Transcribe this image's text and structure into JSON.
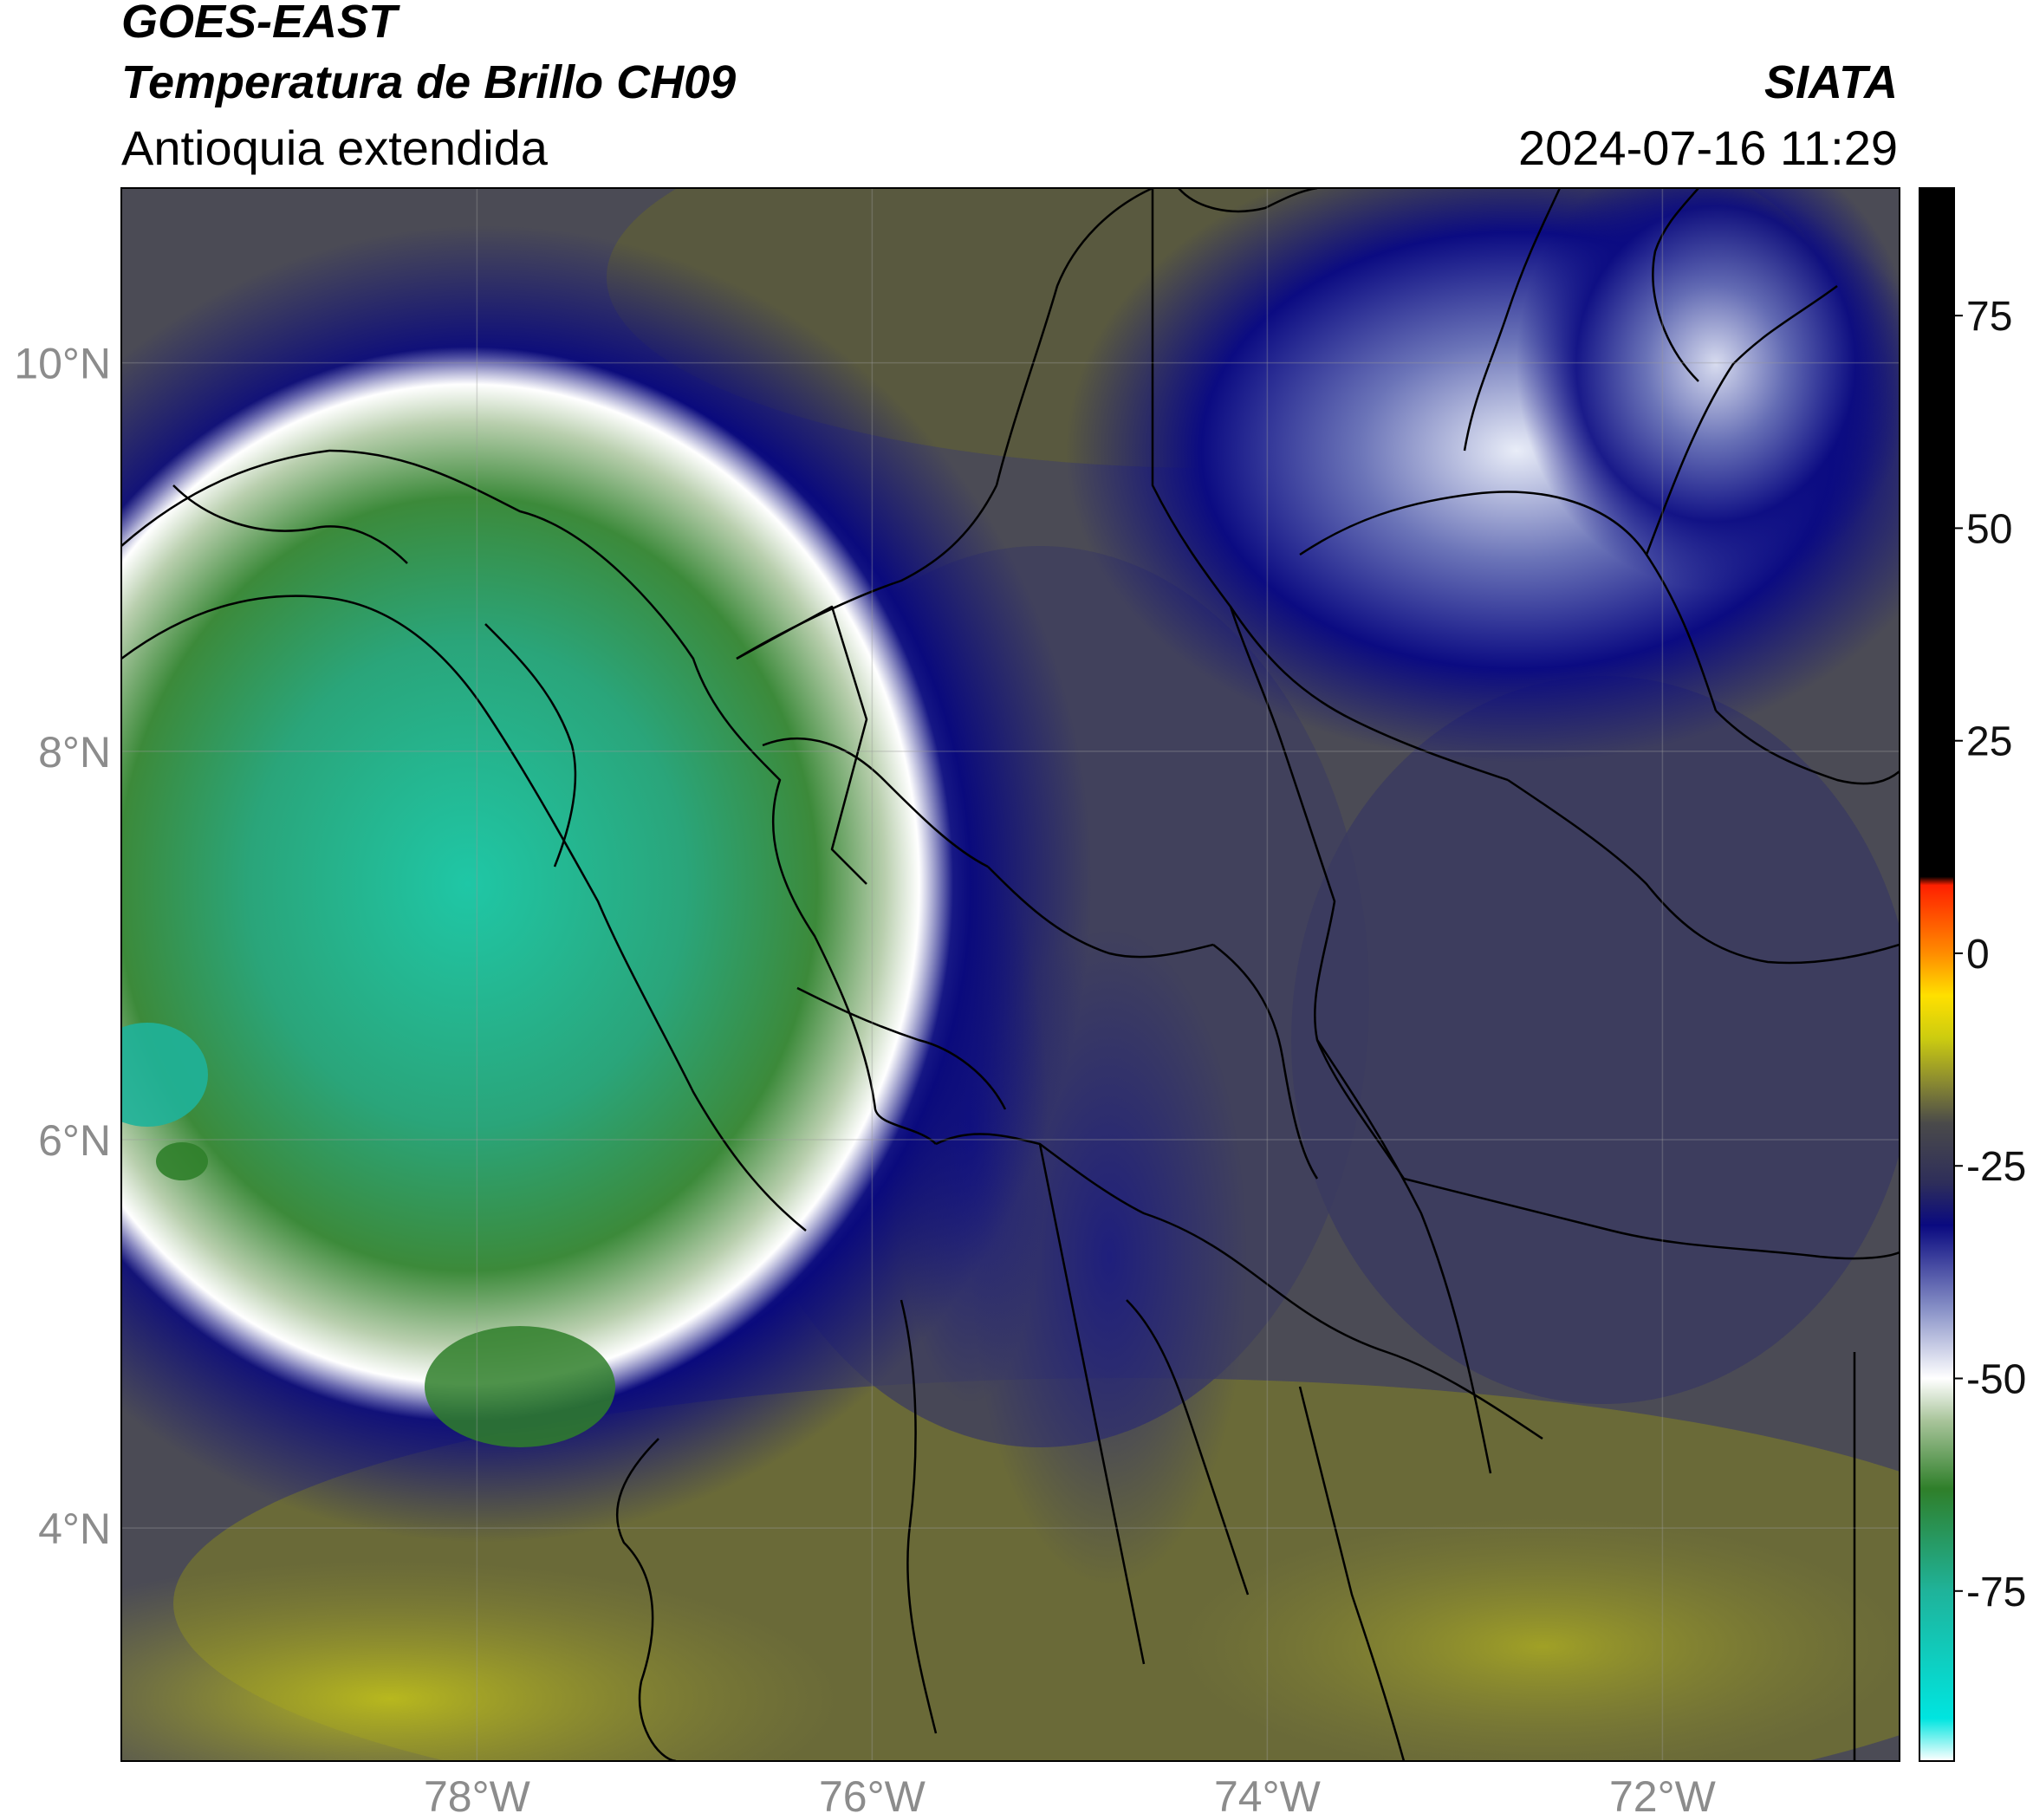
{
  "header": {
    "satellite": "GOES-EAST",
    "product": "Temperatura de Brillo CH09",
    "region": "Antioquia extendida",
    "brand": "SIATA",
    "timestamp": "2024-07-16 11:29"
  },
  "map": {
    "lon_range": [
      -79.8,
      -70.8
    ],
    "lat_range": [
      2.8,
      10.9
    ],
    "lat_ticks": [
      {
        "value": 10,
        "label": "10°N"
      },
      {
        "value": 8,
        "label": "8°N"
      },
      {
        "value": 6,
        "label": "6°N"
      },
      {
        "value": 4,
        "label": "4°N"
      }
    ],
    "lon_ticks": [
      {
        "value": -78,
        "label": "78°W"
      },
      {
        "value": -76,
        "label": "76°W"
      },
      {
        "value": -74,
        "label": "74°W"
      },
      {
        "value": -72,
        "label": "72°W"
      }
    ],
    "grid": true
  },
  "colorbar": {
    "range": [
      -95,
      90
    ],
    "ticks": [
      {
        "value": 75,
        "label": "75"
      },
      {
        "value": 50,
        "label": "50"
      },
      {
        "value": 25,
        "label": "25"
      },
      {
        "value": 0,
        "label": "0"
      },
      {
        "value": -25,
        "label": "-25"
      },
      {
        "value": -50,
        "label": "-50"
      },
      {
        "value": -75,
        "label": "-75"
      }
    ],
    "stops": [
      {
        "value": -95,
        "color": "#ffffff"
      },
      {
        "value": -90,
        "color": "#00e5e0"
      },
      {
        "value": -75,
        "color": "#1fb39a"
      },
      {
        "value": -63,
        "color": "#2f7f2a"
      },
      {
        "value": -55,
        "color": "#a8c49a"
      },
      {
        "value": -50,
        "color": "#ffffff"
      },
      {
        "value": -42,
        "color": "#8a93c8"
      },
      {
        "value": -32,
        "color": "#0a0a80"
      },
      {
        "value": -27,
        "color": "#2e2e5a"
      },
      {
        "value": -20,
        "color": "#4a4a4a"
      },
      {
        "value": -15,
        "color": "#8c8c30"
      },
      {
        "value": -10,
        "color": "#cccc10"
      },
      {
        "value": -5,
        "color": "#ffe000"
      },
      {
        "value": 0,
        "color": "#ff8c00"
      },
      {
        "value": 8,
        "color": "#ff2000"
      },
      {
        "value": 9,
        "color": "#000000"
      },
      {
        "value": 90,
        "color": "#000000"
      }
    ]
  }
}
